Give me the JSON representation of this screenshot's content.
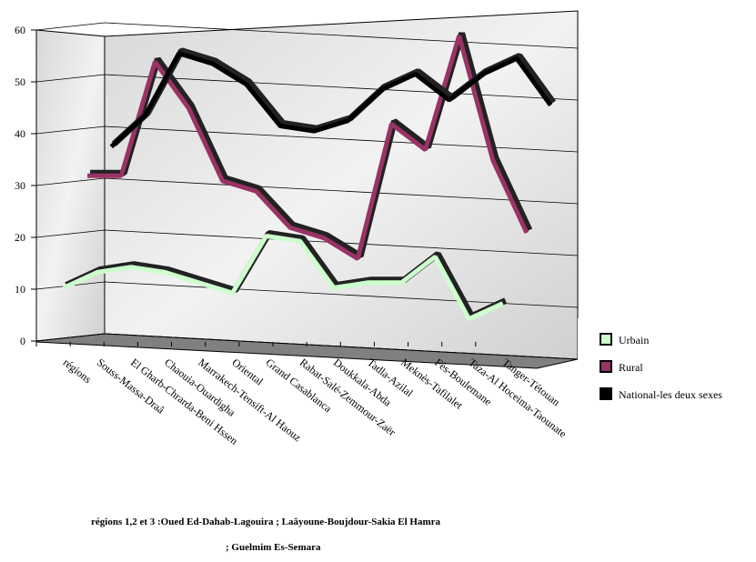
{
  "chart_data": {
    "type": "line",
    "categories": [
      "régions",
      "Souss-Massa-Draâ",
      "El Gharb-Chrarda-Beni Hssen",
      "Chaouia-Ouardigha",
      "Marrakech-Tensift-Al Haouz",
      "Oriental",
      "Grand Casablanca",
      "Rabat-Salé-Zemmour-Zaër",
      "Doukkala-Abda",
      "Tadla-Azilal",
      "Meknès-Tafilalet",
      "Fès-Boulemane",
      "Taza-Al Hoceima-Taounate",
      "Tanger-Tétouan"
    ],
    "series": [
      {
        "name": "Urbain",
        "color": "#ccffcc",
        "values": [
          10,
          13,
          14,
          13,
          11,
          9,
          20,
          19,
          10,
          11,
          11,
          16,
          4,
          7
        ]
      },
      {
        "name": "Rural",
        "color": "#993366",
        "values": [
          31,
          31,
          53,
          44,
          30,
          28,
          21,
          19,
          15,
          41,
          36,
          58,
          34,
          20
        ]
      },
      {
        "name": "National-les deux sexes",
        "color": "#000000",
        "values": [
          36,
          42,
          54,
          52,
          48,
          40,
          39,
          41,
          47,
          50,
          45,
          50,
          53,
          44
        ]
      }
    ],
    "ylim": [
      0,
      60
    ],
    "yticks": [
      0,
      10,
      20,
      30,
      40,
      50,
      60
    ],
    "grid": true,
    "notes": [
      "régions 1,2 et 3 :Oued Ed-Dahab-Lagouira ; Laâyoune-Boujdour-Sakia El Hamra",
      ";  Guelmim Es-Semara"
    ]
  }
}
